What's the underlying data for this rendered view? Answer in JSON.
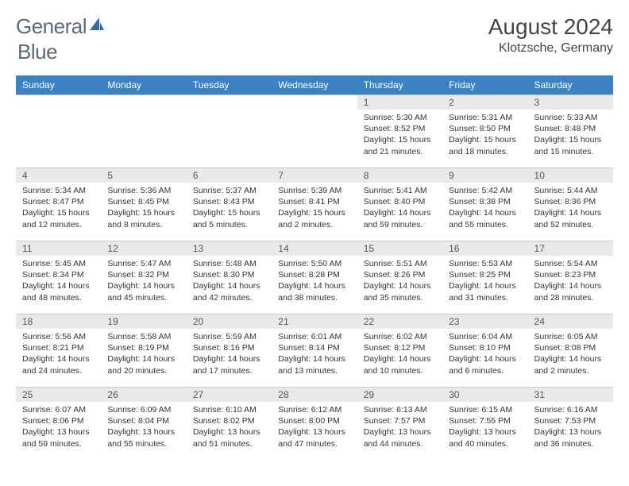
{
  "logo": {
    "text_a": "General",
    "text_b": "Blue"
  },
  "title": "August 2024",
  "location": "Klotzsche, Germany",
  "colors": {
    "header_bg": "#3b82c4",
    "header_text": "#ffffff",
    "daynum_bg": "#e9e9e9",
    "border": "#c8c8c8",
    "logo_gray": "#5a6a78",
    "logo_blue": "#2f6fa8"
  },
  "weekdays": [
    "Sunday",
    "Monday",
    "Tuesday",
    "Wednesday",
    "Thursday",
    "Friday",
    "Saturday"
  ],
  "first_weekday_index": 4,
  "days": [
    {
      "n": 1,
      "sunrise": "5:30 AM",
      "sunset": "8:52 PM",
      "daylight": "15 hours and 21 minutes."
    },
    {
      "n": 2,
      "sunrise": "5:31 AM",
      "sunset": "8:50 PM",
      "daylight": "15 hours and 18 minutes."
    },
    {
      "n": 3,
      "sunrise": "5:33 AM",
      "sunset": "8:48 PM",
      "daylight": "15 hours and 15 minutes."
    },
    {
      "n": 4,
      "sunrise": "5:34 AM",
      "sunset": "8:47 PM",
      "daylight": "15 hours and 12 minutes."
    },
    {
      "n": 5,
      "sunrise": "5:36 AM",
      "sunset": "8:45 PM",
      "daylight": "15 hours and 8 minutes."
    },
    {
      "n": 6,
      "sunrise": "5:37 AM",
      "sunset": "8:43 PM",
      "daylight": "15 hours and 5 minutes."
    },
    {
      "n": 7,
      "sunrise": "5:39 AM",
      "sunset": "8:41 PM",
      "daylight": "15 hours and 2 minutes."
    },
    {
      "n": 8,
      "sunrise": "5:41 AM",
      "sunset": "8:40 PM",
      "daylight": "14 hours and 59 minutes."
    },
    {
      "n": 9,
      "sunrise": "5:42 AM",
      "sunset": "8:38 PM",
      "daylight": "14 hours and 55 minutes."
    },
    {
      "n": 10,
      "sunrise": "5:44 AM",
      "sunset": "8:36 PM",
      "daylight": "14 hours and 52 minutes."
    },
    {
      "n": 11,
      "sunrise": "5:45 AM",
      "sunset": "8:34 PM",
      "daylight": "14 hours and 48 minutes."
    },
    {
      "n": 12,
      "sunrise": "5:47 AM",
      "sunset": "8:32 PM",
      "daylight": "14 hours and 45 minutes."
    },
    {
      "n": 13,
      "sunrise": "5:48 AM",
      "sunset": "8:30 PM",
      "daylight": "14 hours and 42 minutes."
    },
    {
      "n": 14,
      "sunrise": "5:50 AM",
      "sunset": "8:28 PM",
      "daylight": "14 hours and 38 minutes."
    },
    {
      "n": 15,
      "sunrise": "5:51 AM",
      "sunset": "8:26 PM",
      "daylight": "14 hours and 35 minutes."
    },
    {
      "n": 16,
      "sunrise": "5:53 AM",
      "sunset": "8:25 PM",
      "daylight": "14 hours and 31 minutes."
    },
    {
      "n": 17,
      "sunrise": "5:54 AM",
      "sunset": "8:23 PM",
      "daylight": "14 hours and 28 minutes."
    },
    {
      "n": 18,
      "sunrise": "5:56 AM",
      "sunset": "8:21 PM",
      "daylight": "14 hours and 24 minutes."
    },
    {
      "n": 19,
      "sunrise": "5:58 AM",
      "sunset": "8:19 PM",
      "daylight": "14 hours and 20 minutes."
    },
    {
      "n": 20,
      "sunrise": "5:59 AM",
      "sunset": "8:16 PM",
      "daylight": "14 hours and 17 minutes."
    },
    {
      "n": 21,
      "sunrise": "6:01 AM",
      "sunset": "8:14 PM",
      "daylight": "14 hours and 13 minutes."
    },
    {
      "n": 22,
      "sunrise": "6:02 AM",
      "sunset": "8:12 PM",
      "daylight": "14 hours and 10 minutes."
    },
    {
      "n": 23,
      "sunrise": "6:04 AM",
      "sunset": "8:10 PM",
      "daylight": "14 hours and 6 minutes."
    },
    {
      "n": 24,
      "sunrise": "6:05 AM",
      "sunset": "8:08 PM",
      "daylight": "14 hours and 2 minutes."
    },
    {
      "n": 25,
      "sunrise": "6:07 AM",
      "sunset": "8:06 PM",
      "daylight": "13 hours and 59 minutes."
    },
    {
      "n": 26,
      "sunrise": "6:09 AM",
      "sunset": "8:04 PM",
      "daylight": "13 hours and 55 minutes."
    },
    {
      "n": 27,
      "sunrise": "6:10 AM",
      "sunset": "8:02 PM",
      "daylight": "13 hours and 51 minutes."
    },
    {
      "n": 28,
      "sunrise": "6:12 AM",
      "sunset": "8:00 PM",
      "daylight": "13 hours and 47 minutes."
    },
    {
      "n": 29,
      "sunrise": "6:13 AM",
      "sunset": "7:57 PM",
      "daylight": "13 hours and 44 minutes."
    },
    {
      "n": 30,
      "sunrise": "6:15 AM",
      "sunset": "7:55 PM",
      "daylight": "13 hours and 40 minutes."
    },
    {
      "n": 31,
      "sunrise": "6:16 AM",
      "sunset": "7:53 PM",
      "daylight": "13 hours and 36 minutes."
    }
  ],
  "labels": {
    "sunrise": "Sunrise:",
    "sunset": "Sunset:",
    "daylight": "Daylight:"
  }
}
